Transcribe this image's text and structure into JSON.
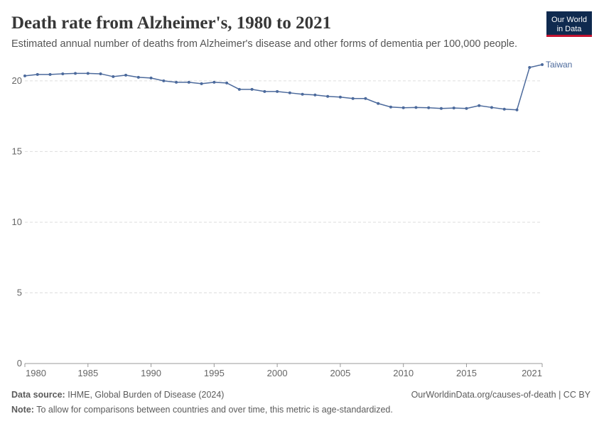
{
  "header": {
    "title": "Death rate from Alzheimer's, 1980 to 2021",
    "subtitle": "Estimated annual number of deaths from Alzheimer's disease and other forms of dementia per 100,000 people.",
    "logo": [
      "Our World",
      "in Data"
    ]
  },
  "chart_data": {
    "type": "line",
    "x": [
      1980,
      1981,
      1982,
      1983,
      1984,
      1985,
      1986,
      1987,
      1988,
      1989,
      1990,
      1991,
      1992,
      1993,
      1994,
      1995,
      1996,
      1997,
      1998,
      1999,
      2000,
      2001,
      2002,
      2003,
      2004,
      2005,
      2006,
      2007,
      2008,
      2009,
      2010,
      2011,
      2012,
      2013,
      2014,
      2015,
      2016,
      2017,
      2018,
      2019,
      2020,
      2021
    ],
    "series": [
      {
        "name": "Taiwan",
        "color": "#4c6a9c",
        "values": [
          20.35,
          20.45,
          20.45,
          20.5,
          20.53,
          20.53,
          20.5,
          20.3,
          20.4,
          20.25,
          20.2,
          20.0,
          19.9,
          19.9,
          19.8,
          19.9,
          19.85,
          19.4,
          19.4,
          19.25,
          19.25,
          19.15,
          19.05,
          19.0,
          18.9,
          18.85,
          18.75,
          18.75,
          18.4,
          18.15,
          18.1,
          18.12,
          18.1,
          18.05,
          18.08,
          18.05,
          18.25,
          18.12,
          18.0,
          17.95,
          20.95,
          21.15
        ]
      }
    ],
    "xlim": [
      1980,
      2021
    ],
    "xticks": [
      1980,
      1985,
      1990,
      1995,
      2000,
      2005,
      2010,
      2015,
      2021
    ],
    "ylim": [
      0,
      21.15
    ],
    "yticks": [
      0,
      5,
      10,
      15,
      20
    ],
    "grid": true
  },
  "footer": {
    "source_label": "Data source:",
    "source": "IHME, Global Burden of Disease (2024)",
    "link": "OurWorldinData.org/causes-of-death | CC BY",
    "note_label": "Note:",
    "note": "To allow for comparisons between countries and over time, this metric is age-standardized."
  }
}
